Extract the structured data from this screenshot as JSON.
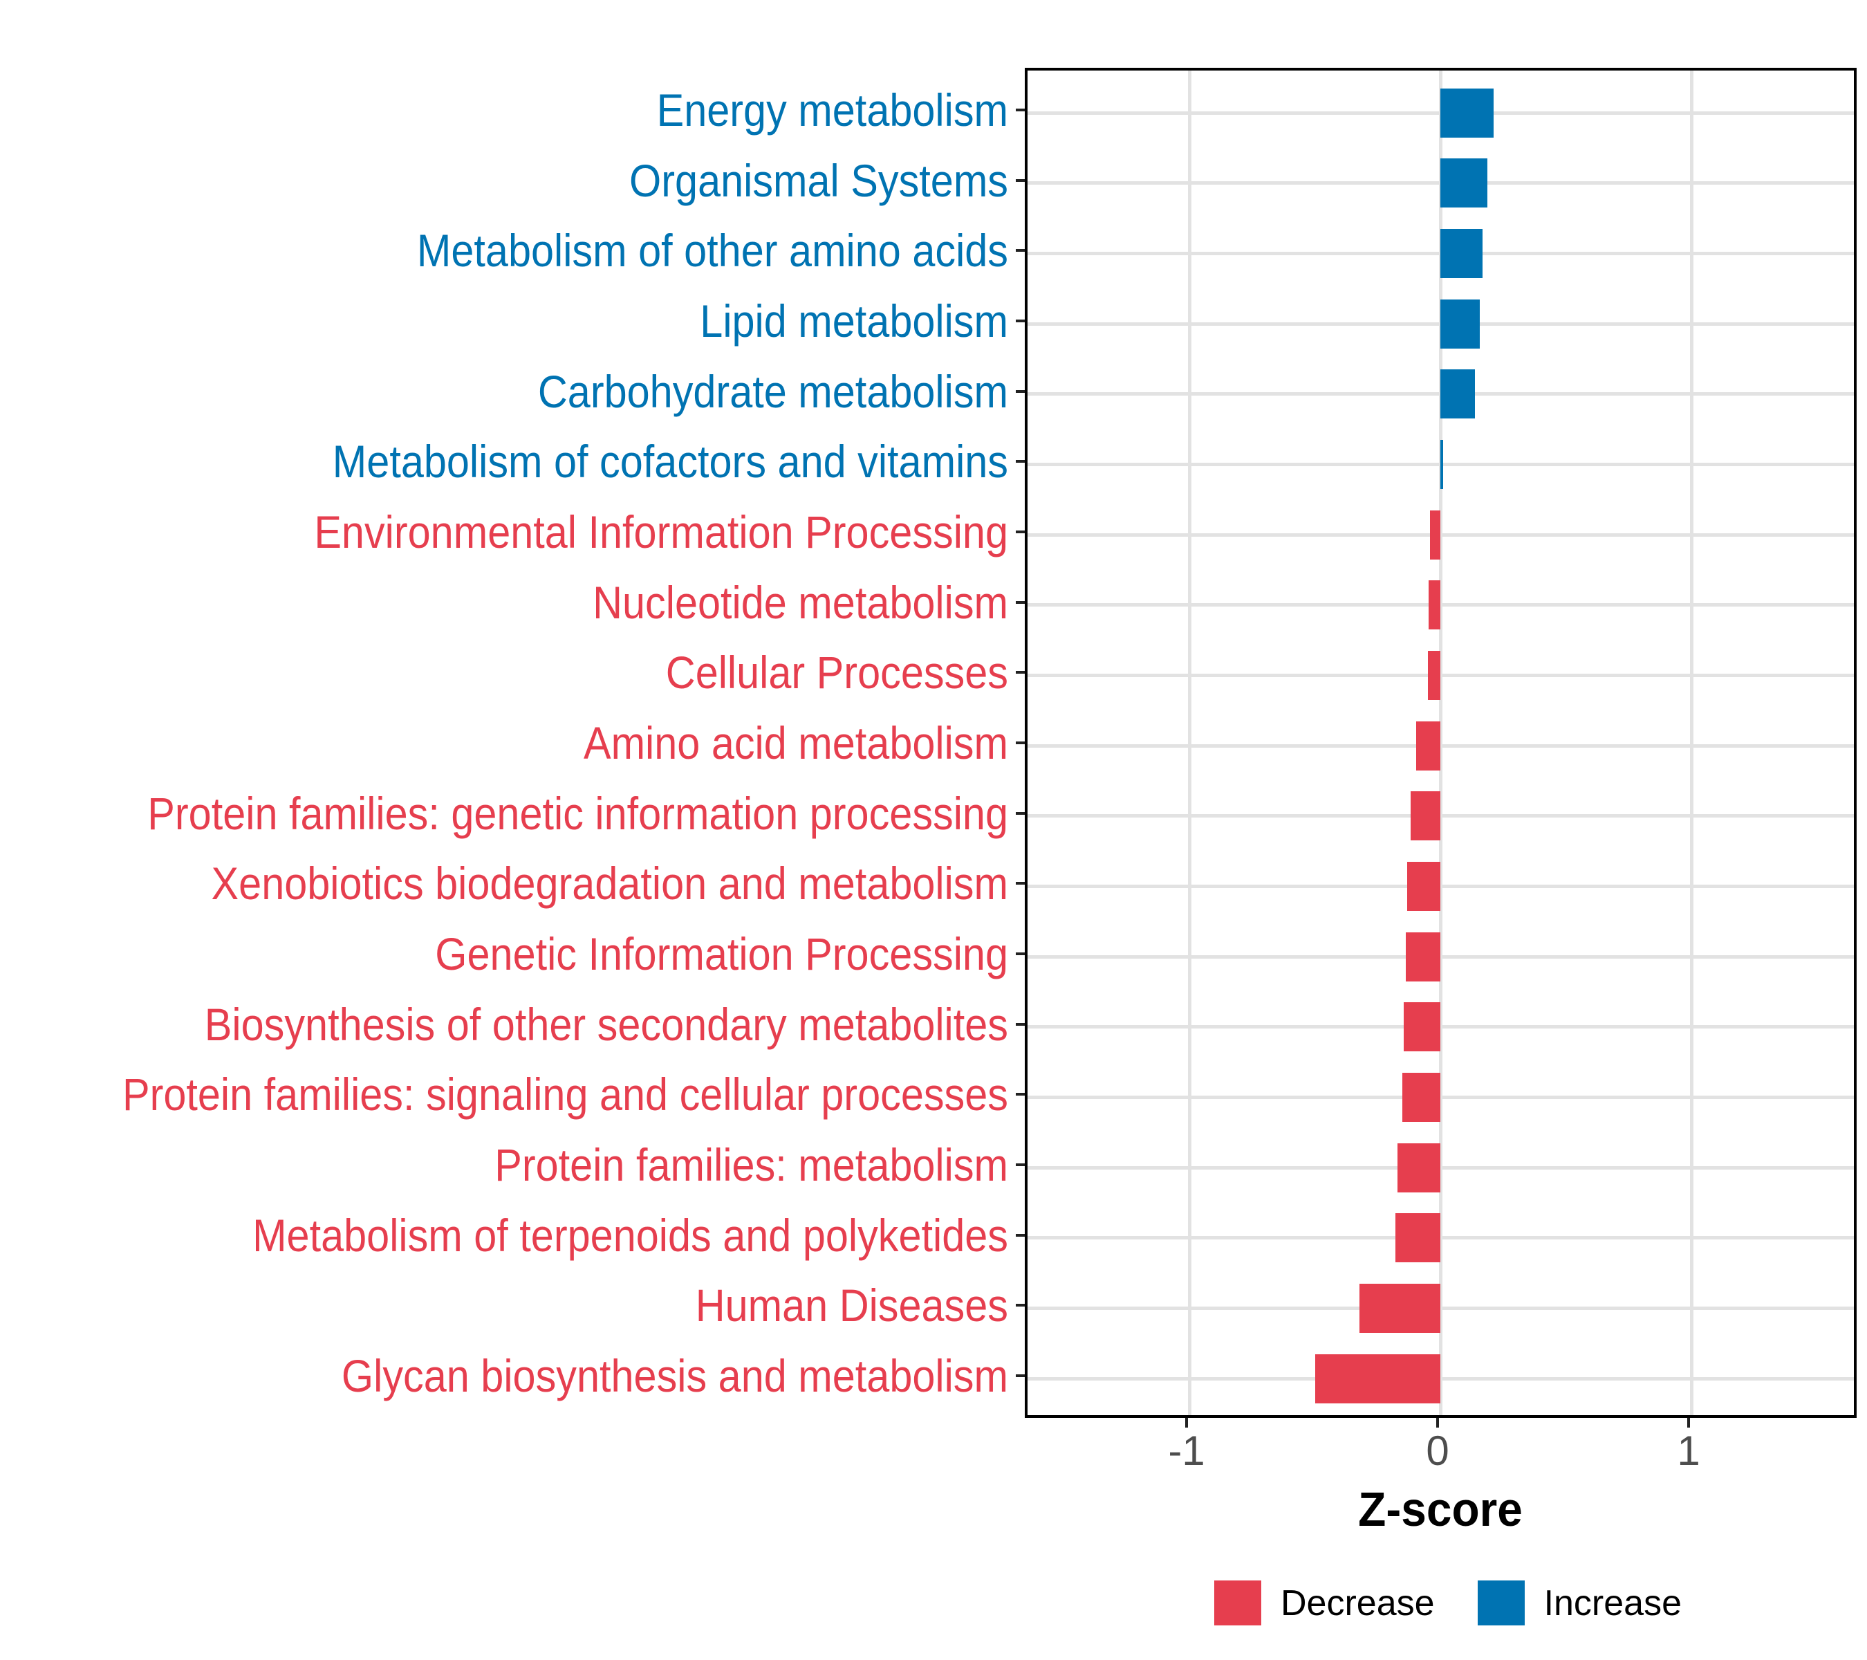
{
  "chart_data": {
    "type": "bar",
    "orientation": "horizontal",
    "title": "",
    "xlabel": "Z-score",
    "ylabel": "",
    "x_ticks": [
      "-1",
      "0",
      "1"
    ],
    "x_tick_values": [
      -1,
      0,
      1
    ],
    "xlim": [
      -1.645,
      1.669
    ],
    "grid": true,
    "legend_position": "bottom",
    "categories": [
      "Energy metabolism",
      "Organismal Systems",
      "Metabolism of other amino acids",
      "Lipid metabolism",
      "Carbohydrate metabolism",
      "Metabolism of cofactors and vitamins",
      "Environmental Information Processing",
      "Nucleotide metabolism",
      "Cellular Processes",
      "Amino acid metabolism",
      "Protein families: genetic information processing",
      "Xenobiotics biodegradation and metabolism",
      "Genetic Information Processing",
      "Biosynthesis of other secondary metabolites",
      "Protein families: signaling and cellular processes",
      "Protein families: metabolism",
      "Metabolism of terpenoids and polyketides",
      "Human Diseases",
      "Glycan biosynthesis and metabolism"
    ],
    "values": [
      0.212,
      0.187,
      0.168,
      0.157,
      0.138,
      0.011,
      -0.041,
      -0.047,
      -0.05,
      -0.097,
      -0.118,
      -0.133,
      -0.138,
      -0.147,
      -0.152,
      -0.171,
      -0.179,
      -0.322,
      -0.499
    ],
    "colors": {
      "increase": "#0073B2",
      "decrease": "#E63E4E"
    },
    "legend": [
      {
        "label": "Decrease",
        "color": "#E63E4E"
      },
      {
        "label": "Increase",
        "color": "#0073B2"
      }
    ]
  }
}
